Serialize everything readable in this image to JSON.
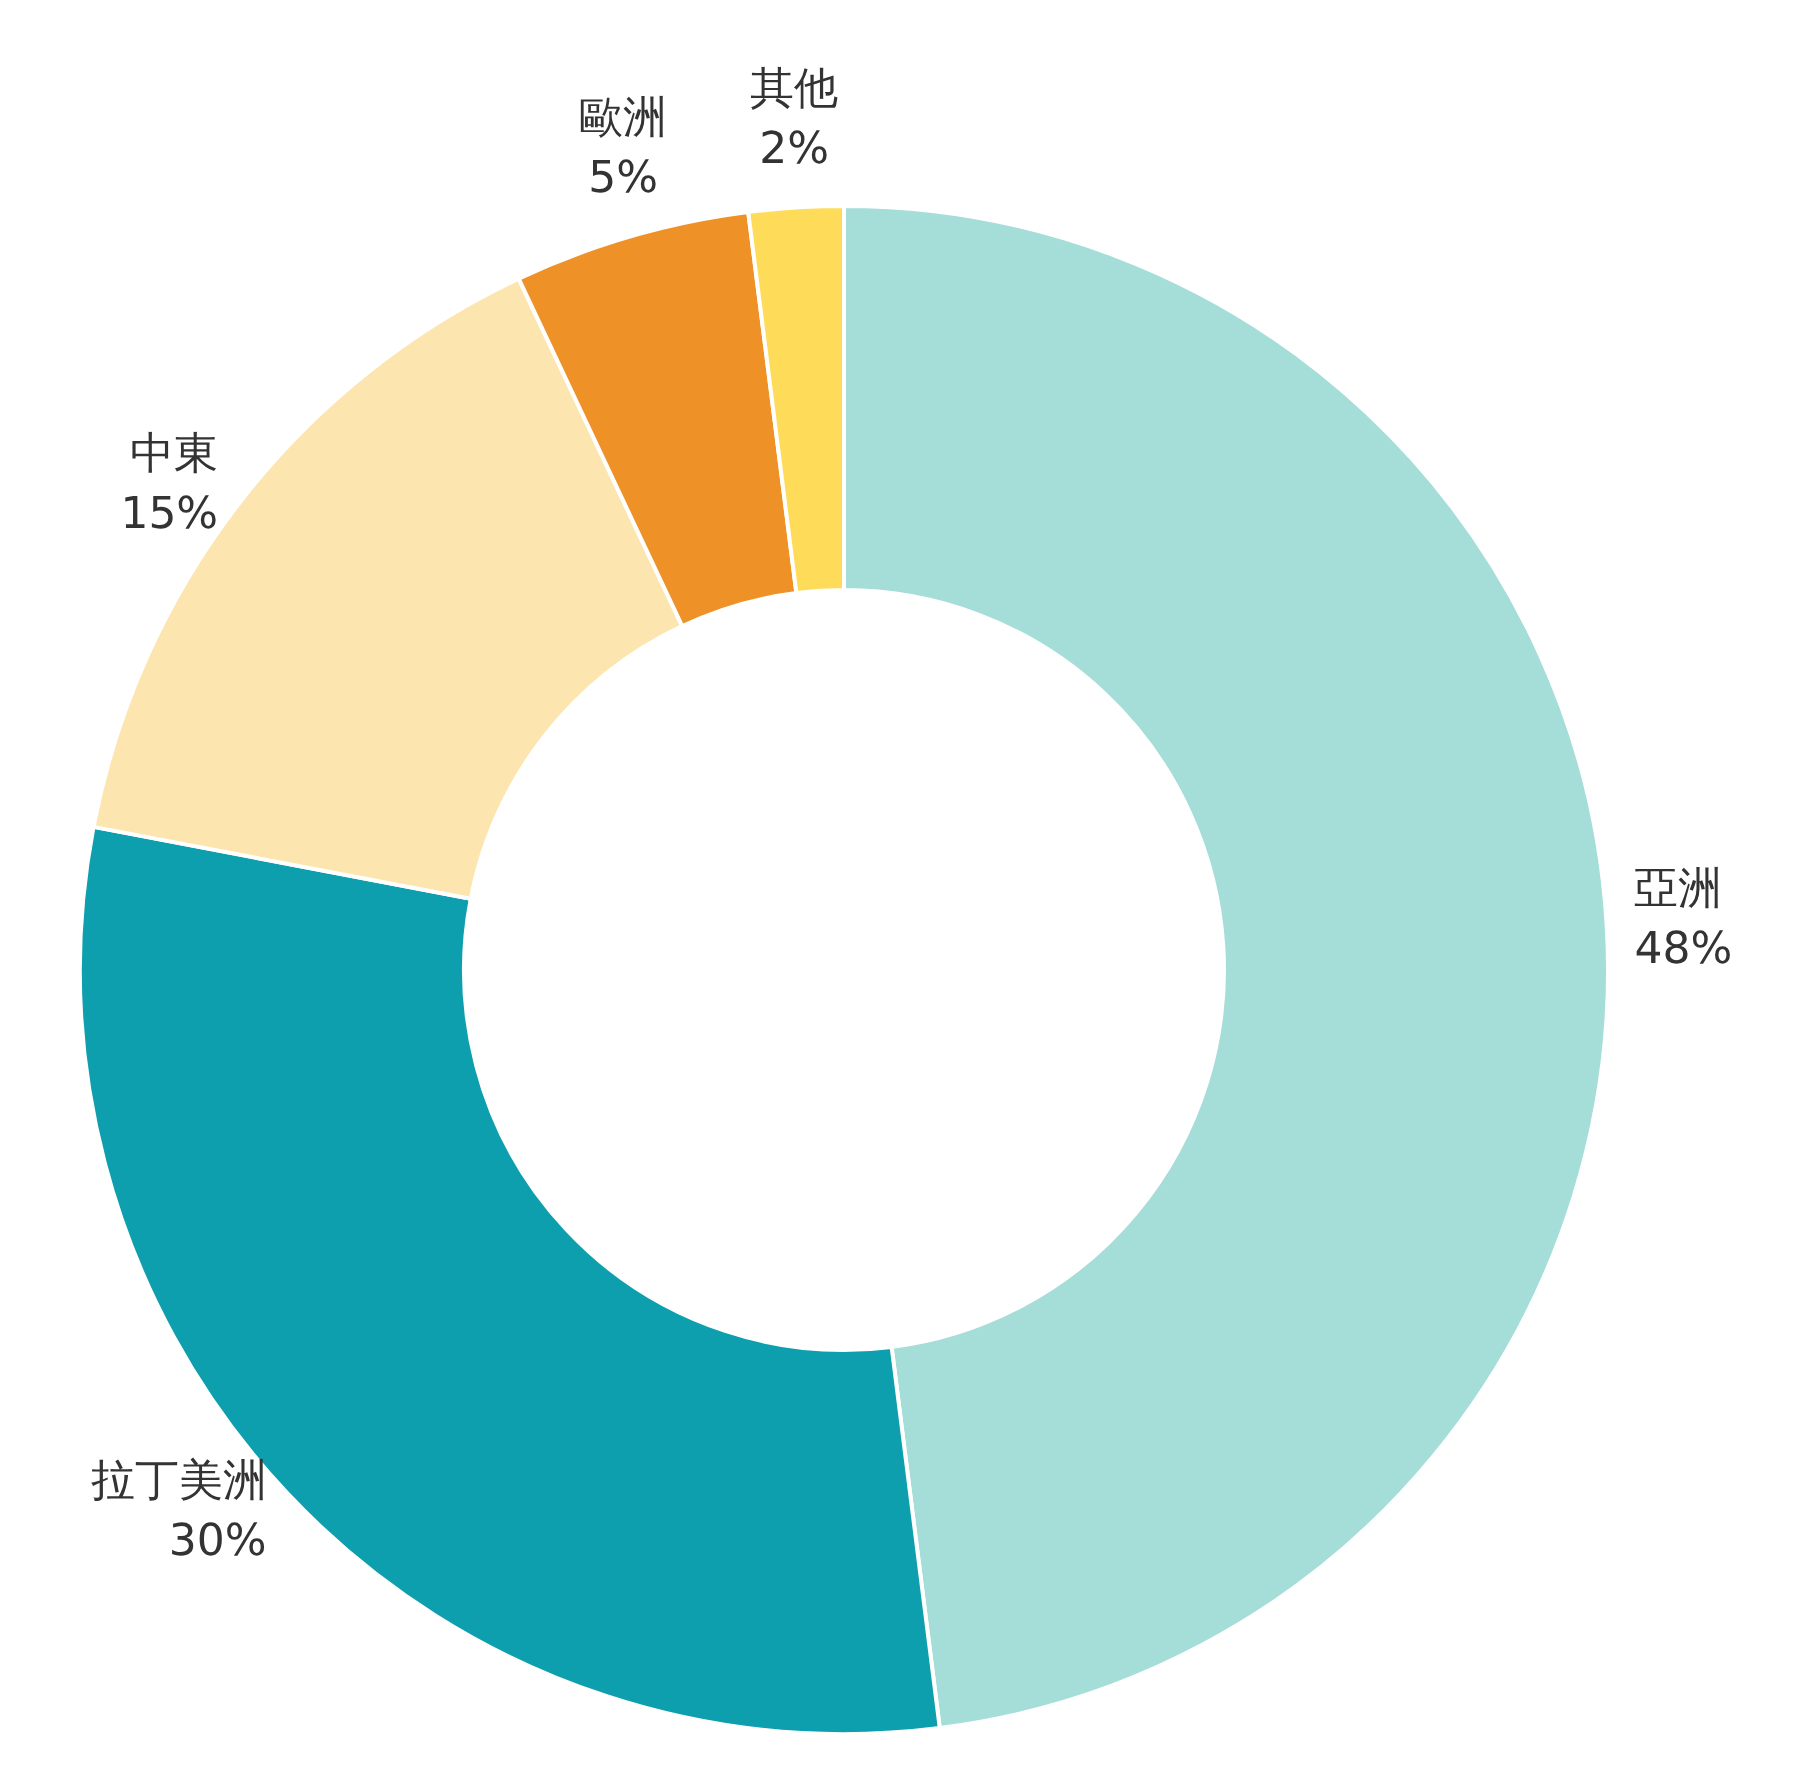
{
  "chart_data": {
    "type": "donut",
    "categories": [
      "亞洲",
      "拉丁美洲",
      "中東",
      "歐洲",
      "其他"
    ],
    "values": [
      48,
      30,
      15,
      5,
      2
    ],
    "colors": [
      "#a5ddd9",
      "#0e9fae",
      "#fde5b0",
      "#ee9228",
      "#fedc5a"
    ],
    "value_labels": [
      "48%",
      "30%",
      "15%",
      "5%",
      "2%"
    ],
    "legend": false
  }
}
